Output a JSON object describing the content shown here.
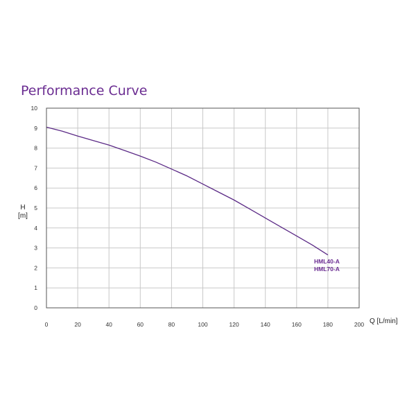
{
  "colors": {
    "accent": "#6a2c91",
    "grid": "#c8c8c8",
    "frame": "#555555",
    "curve": "#5b2a86"
  },
  "chart_data": {
    "type": "line",
    "title": "Performance Curve",
    "xlabel": "Q [L/min]",
    "ylabel_line1": "H",
    "ylabel_line2": "[m]",
    "xlim": [
      0,
      200
    ],
    "ylim": [
      0,
      10
    ],
    "xticks": [
      0,
      20,
      40,
      60,
      80,
      100,
      120,
      140,
      160,
      180,
      200
    ],
    "yticks": [
      0,
      1,
      2,
      3,
      4,
      5,
      6,
      7,
      8,
      9,
      10
    ],
    "grid": true,
    "series_labels": [
      "HML40-A",
      "HML70-A"
    ],
    "series": [
      {
        "x": [
          0,
          10,
          20,
          30,
          40,
          50,
          60,
          70,
          80,
          90,
          100,
          110,
          120,
          130,
          140,
          150,
          160,
          170,
          180
        ],
        "y": [
          9.05,
          8.85,
          8.6,
          8.38,
          8.15,
          7.88,
          7.6,
          7.3,
          6.95,
          6.6,
          6.2,
          5.8,
          5.4,
          4.95,
          4.5,
          4.05,
          3.6,
          3.15,
          2.65
        ]
      }
    ]
  }
}
